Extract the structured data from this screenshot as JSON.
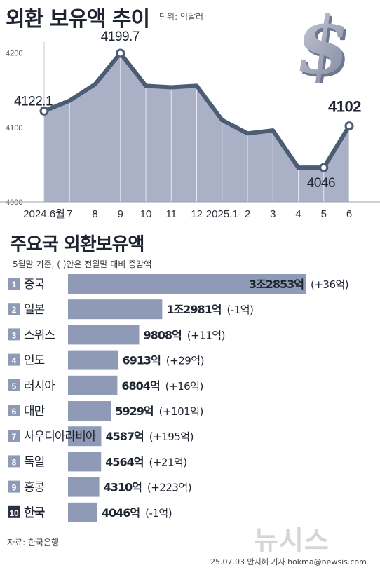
{
  "title": "외환 보유액 추이",
  "unit": "단위: 억달러",
  "chart_data": [
    {
      "type": "area",
      "title": "외환 보유액 추이",
      "unit": "단위: 억달러",
      "x_labels": [
        "2024.6월",
        "7",
        "8",
        "9",
        "10",
        "11",
        "12",
        "2025.1",
        "2",
        "3",
        "4",
        "5",
        "6"
      ],
      "values": [
        4122.1,
        4136,
        4158,
        4199.7,
        4156,
        4154,
        4156,
        4110,
        4092,
        4096,
        4046,
        4046,
        4102
      ],
      "annotations": [
        {
          "index": 0,
          "label": "4122.1"
        },
        {
          "index": 3,
          "label": "4199.7"
        },
        {
          "index": 11,
          "label": "4046"
        },
        {
          "index": 12,
          "label": "4102"
        }
      ],
      "yticks": [
        "4200",
        "4100",
        "4000"
      ],
      "ylim": [
        4000,
        4210
      ],
      "grid": false,
      "line_color": "#4a5d74",
      "fill_color": "#aab0c6"
    },
    {
      "type": "bar",
      "orientation": "horizontal",
      "title": "주요국 외환보유액",
      "note": "5월말 기준, ( )안은 전월말 대비 증감액",
      "categories": [
        "중국",
        "일본",
        "스위스",
        "인도",
        "러시아",
        "대만",
        "사우디아라비아",
        "독일",
        "홍콩",
        "한국"
      ],
      "ranks": [
        "1",
        "2",
        "3",
        "4",
        "5",
        "6",
        "7",
        "8",
        "9",
        "10"
      ],
      "values": [
        32853,
        12981,
        9808,
        6913,
        6804,
        5929,
        4587,
        4564,
        4310,
        4046
      ],
      "value_labels": [
        "3조2853억",
        "1조2981억",
        "9808억",
        "6913억",
        "6804억",
        "5929억",
        "4587억",
        "4564억",
        "4310억",
        "4046억"
      ],
      "change_labels": [
        "(+36억)",
        "(-1억)",
        "(+11억)",
        "(+29억)",
        "(+16억)",
        "(+101억)",
        "(+195억)",
        "(+21억)",
        "(+223억)",
        "(-1억)"
      ],
      "bar_color": "#8f9bb6",
      "highlight_index": 9
    }
  ],
  "source": "자료: 한국은행",
  "credit": "25.07.03 안지혜 기자 hokma@newsis.com",
  "logo": "뉴시스",
  "dollar_icon": "dollar-sign-icon"
}
